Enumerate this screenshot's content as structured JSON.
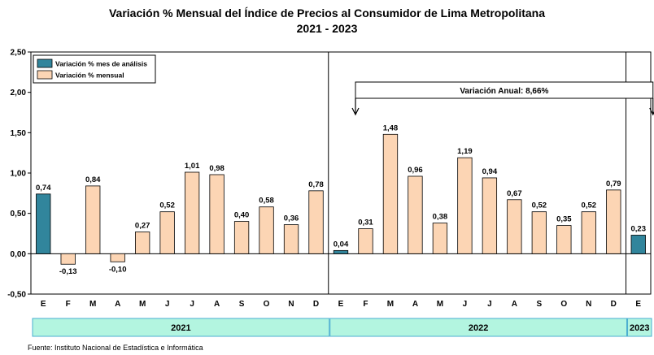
{
  "chart_data": {
    "type": "bar",
    "title": "Variación % Mensual del Índice de Precios al Consumidor de Lima Metropolitana",
    "subtitle": "2021 - 2023",
    "categories": [
      "E",
      "F",
      "M",
      "A",
      "M",
      "J",
      "J",
      "A",
      "S",
      "O",
      "N",
      "D",
      "E",
      "F",
      "M",
      "A",
      "M",
      "J",
      "J",
      "A",
      "S",
      "O",
      "N",
      "D",
      "E"
    ],
    "values": [
      0.74,
      -0.13,
      0.84,
      -0.1,
      0.27,
      0.52,
      1.01,
      0.98,
      0.4,
      0.58,
      0.36,
      0.78,
      0.04,
      0.31,
      1.48,
      0.96,
      0.38,
      1.19,
      0.94,
      0.67,
      0.52,
      0.35,
      0.52,
      0.79,
      0.23
    ],
    "value_labels": [
      "0,74",
      "-0,13",
      "0,84",
      "-0,10",
      "0,27",
      "0,52",
      "1,01",
      "0,98",
      "0,40",
      "0,58",
      "0,36",
      "0,78",
      "0,04",
      "0,31",
      "1,48",
      "0,96",
      "0,38",
      "1,19",
      "0,94",
      "0,67",
      "0,52",
      "0,35",
      "0,52",
      "0,79",
      "0,23"
    ],
    "highlight": [
      true,
      false,
      false,
      false,
      false,
      false,
      false,
      false,
      false,
      false,
      false,
      false,
      true,
      false,
      false,
      false,
      false,
      false,
      false,
      false,
      false,
      false,
      false,
      false,
      true
    ],
    "ylim": [
      -0.5,
      2.5
    ],
    "yticks": [
      -0.5,
      0,
      0.5,
      1,
      1.5,
      2,
      2.5
    ],
    "ytick_labels": [
      "-0,50",
      "0,00",
      "0,50",
      "1,00",
      "1,50",
      "2,00",
      "2,50"
    ],
    "legend": [
      {
        "label": "Variación % mes de análisis",
        "color": "#31859c"
      },
      {
        "label": "Variación % mensual",
        "color": "#fcd5b4"
      }
    ],
    "legend_position": "top-left",
    "years": [
      {
        "label": "2021",
        "months": 12
      },
      {
        "label": "2022",
        "months": 12
      },
      {
        "label": "2023",
        "months": 1
      }
    ],
    "annotation": {
      "text": "Variación Anual: 8,66%"
    },
    "colors": {
      "highlight": "#31859c",
      "normal": "#fcd5b4",
      "year_band": "#b3f5e0",
      "year_band_border": "#4aaed0"
    },
    "grid": false
  },
  "source": "Fuente: Instituto Nacional de Estadística e Informática"
}
